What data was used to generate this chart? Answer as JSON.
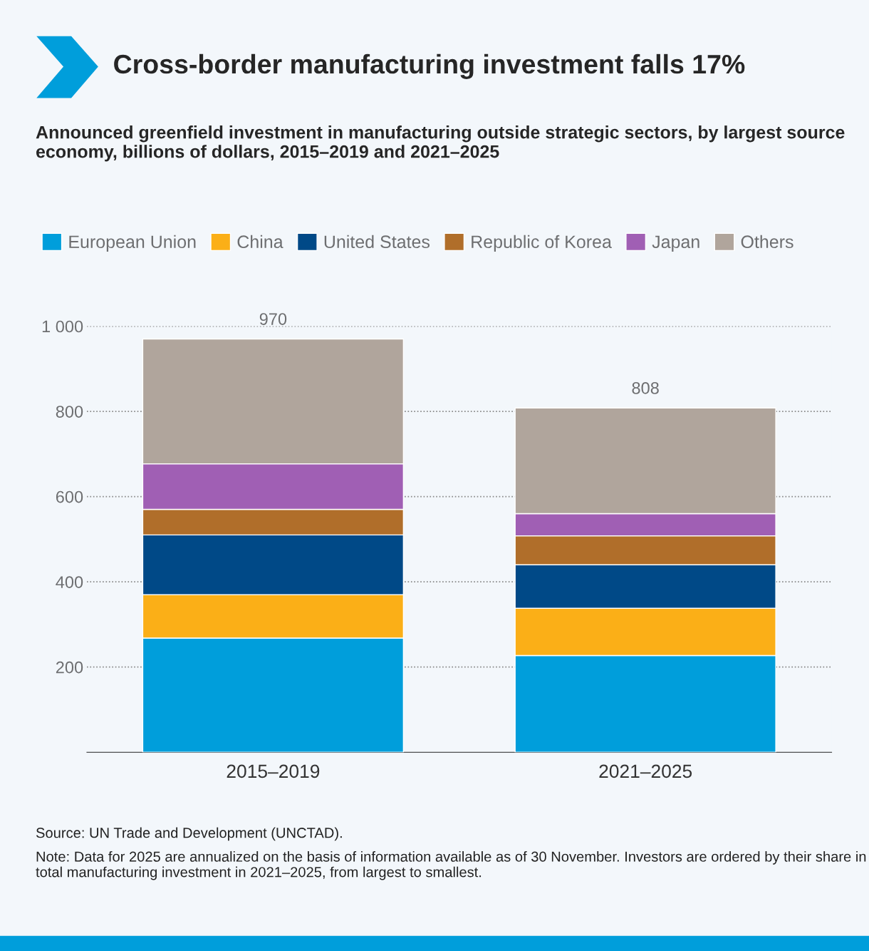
{
  "chart_data": {
    "type": "bar",
    "title": "Cross-border manufacturing investment falls 17%",
    "subtitle": "Announced greenfield investment in manufacturing outside strategic sectors, by largest source economy, billions of dollars, 2015–2019 and 2021–2025",
    "categories": [
      "2015–2019",
      "2021–2025"
    ],
    "series": [
      {
        "name": "European Union",
        "color": "#009edb",
        "values": [
          268,
          227
        ]
      },
      {
        "name": "China",
        "color": "#fbaf17",
        "values": [
          102,
          111
        ]
      },
      {
        "name": "United States",
        "color": "#004987",
        "values": [
          140,
          102
        ]
      },
      {
        "name": "Republic of Korea",
        "color": "#b06e2a",
        "values": [
          60,
          68
        ]
      },
      {
        "name": "Japan",
        "color": "#a05fb4",
        "values": [
          107,
          52
        ]
      },
      {
        "name": "Others",
        "color": "#b0a59c",
        "values": [
          293,
          248
        ]
      }
    ],
    "stacked": true,
    "totals": [
      "970",
      "808"
    ],
    "ylim": [
      0,
      1000
    ],
    "yticks": [
      200,
      400,
      600,
      800,
      {
        "value": 1000,
        "label": "1 000"
      }
    ],
    "grid": "y",
    "legend": "top left",
    "annotations": [
      "Source: UN Trade and Development (UNCTAD).",
      "Note: Data for 2025 are annualized on the basis of information available as of 30 November. Investors are ordered by their share in total manufacturing investment in 2021–2025, from largest to smallest."
    ]
  }
}
